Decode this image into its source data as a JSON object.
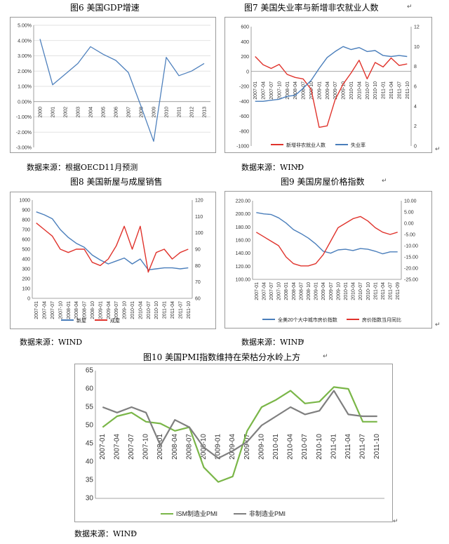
{
  "charts": [
    {
      "title": "图6  美国GDP增速",
      "source": "数据来源：根据OECD11月预测",
      "chart_data": {
        "type": "line",
        "categories": [
          "2000",
          "2001",
          "2002",
          "2003",
          "2004",
          "2005",
          "2006",
          "2007",
          "2008",
          "2009",
          "2010",
          "2011",
          "2012",
          "2013"
        ],
        "series": [
          {
            "name": "",
            "color": "#4F81BD",
            "values": [
              4.1,
              1.1,
              1.8,
              2.5,
              3.6,
              3.1,
              2.7,
              1.9,
              -0.3,
              -2.6,
              2.9,
              1.7,
              2.0,
              2.5
            ]
          }
        ],
        "yticks": [
          "5.00%",
          "4.00%",
          "3.00%",
          "2.00%",
          "1.00%",
          "0.00%",
          "-1.00%",
          "-2.00%",
          "-3.00%"
        ],
        "ylim": [
          -3,
          5
        ],
        "grid": true,
        "legend": "none"
      }
    },
    {
      "title": "图7   美国失业率与新增非农就业人数",
      "source": "数据来源：WIND",
      "chart_data": {
        "type": "line",
        "categories": [
          "2007-01",
          "2007-04",
          "2007-07",
          "2007-10",
          "2008-01",
          "2008-04",
          "2008-07",
          "2008-10",
          "2009-01",
          "2009-04",
          "2009-07",
          "2009-10",
          "2010-01",
          "2010-04",
          "2010-07",
          "2010-10",
          "2011-01",
          "2011-04",
          "2011-07",
          "2011-10"
        ],
        "series": [
          {
            "name": "新增非农就业人数",
            "color": "#E0332C",
            "axis": "left",
            "values": [
              200,
              90,
              40,
              95,
              -40,
              -80,
              -100,
              -240,
              -750,
              -730,
              -380,
              -170,
              -20,
              150,
              -100,
              120,
              60,
              180,
              80,
              100
            ]
          },
          {
            "name": "失业率",
            "color": "#4A7EBB",
            "axis": "right",
            "values": [
              4.5,
              4.5,
              4.6,
              4.7,
              5.0,
              5.1,
              5.8,
              6.6,
              7.8,
              8.9,
              9.5,
              10.0,
              9.7,
              9.9,
              9.5,
              9.6,
              9.1,
              9.0,
              9.1,
              9.0
            ]
          }
        ],
        "yticks_left": [
          "600",
          "400",
          "200",
          "0",
          "-200",
          "-400",
          "-600",
          "-800",
          "-1000"
        ],
        "yticks_right": [
          "12",
          "10",
          "8",
          "6",
          "4",
          "2",
          "0"
        ],
        "ylim_left": [
          -1000,
          600
        ],
        "ylim_right": [
          0,
          12
        ],
        "legend": "bottom"
      }
    },
    {
      "title": "图8  美国新屋与成屋销售",
      "source": "数据来源：WIND",
      "chart_data": {
        "type": "line",
        "categories": [
          "2007-01",
          "2007-04",
          "2007-07",
          "2007-10",
          "2008-01",
          "2008-04",
          "2008-07",
          "2008-10",
          "2009-01",
          "2009-04",
          "2009-07",
          "2009-10",
          "2010-01",
          "2010-04",
          "2010-07",
          "2010-10",
          "2011-01",
          "2011-04",
          "2011-07",
          "2011-10"
        ],
        "series": [
          {
            "name": "新屋",
            "color": "#4A7EBB",
            "axis": "left",
            "values": [
              880,
              850,
              810,
              700,
              620,
              560,
              520,
              440,
              390,
              350,
              380,
              410,
              350,
              400,
              290,
              300,
              310,
              310,
              300,
              310
            ]
          },
          {
            "name": "成屋",
            "color": "#E0332C",
            "axis": "right",
            "values": [
              106,
              102,
              98,
              90,
              88,
              90,
              90,
              82,
              80,
              84,
              92,
              104,
              90,
              104,
              76,
              88,
              90,
              84,
              88,
              90
            ]
          }
        ],
        "yticks_left": [
          "1000",
          "900",
          "800",
          "700",
          "600",
          "500",
          "400",
          "300",
          "200",
          "100",
          "0"
        ],
        "yticks_right": [
          "120",
          "110",
          "100",
          "90",
          "80",
          "70",
          "60"
        ],
        "ylim_left": [
          0,
          1000
        ],
        "ylim_right": [
          60,
          120
        ],
        "legend": "bottom"
      }
    },
    {
      "title": "图9  美国房屋价格指数",
      "source": "数据来源：WIND",
      "chart_data": {
        "type": "line",
        "categories": [
          "2007-01",
          "2007-04",
          "2007-07",
          "2007-10",
          "2008-01",
          "2008-04",
          "2008-07",
          "2008-10",
          "2009-01",
          "2009-04",
          "2009-07",
          "2009-10",
          "2010-01",
          "2010-04",
          "2010-07",
          "2010-10",
          "2011-01",
          "2011-04",
          "2011-07",
          "2011-09"
        ],
        "series": [
          {
            "name": "全美20个大中城市房价指数",
            "color": "#4A7EBB",
            "axis": "left",
            "values": [
              202,
              200,
              199,
              194,
              186,
              176,
              170,
              163,
              154,
              143,
              140,
              145,
              146,
              144,
              147,
              146,
              143,
              139,
              142,
              142
            ]
          },
          {
            "name": "房价指数当月同比",
            "color": "#E0332C",
            "axis": "right",
            "values": [
              -4,
              -6,
              -8,
              -10,
              -15,
              -18,
              -19,
              -19,
              -18,
              -14,
              -8,
              -2,
              0,
              2,
              3,
              1,
              -2,
              -4,
              -5,
              -4
            ]
          }
        ],
        "yticks_left": [
          "220.00",
          "200.00",
          "180.00",
          "160.00",
          "140.00",
          "120.00",
          "100.00"
        ],
        "yticks_right": [
          "10.00",
          "5.00",
          "0.00",
          "-5.00",
          "-10.00",
          "-15.00",
          "-20.00",
          "-25.00"
        ],
        "ylim_left": [
          100,
          220
        ],
        "ylim_right": [
          -25,
          10
        ],
        "legend": "bottom"
      }
    },
    {
      "title": "图10  美国PMI指数维持在荣枯分水岭上方",
      "source": "数据来源：WIND",
      "chart_data": {
        "type": "line",
        "categories": [
          "2007-01",
          "2007-04",
          "2007-07",
          "2007-10",
          "2008-01",
          "2008-04",
          "2008-07",
          "2008-10",
          "2009-01",
          "2009-04",
          "2009-07",
          "2009-10",
          "2010-01",
          "2010-04",
          "2010-07",
          "2010-10",
          "2011-01",
          "2011-04",
          "2011-07",
          "2011-10"
        ],
        "series": [
          {
            "name": "ISM制造业PMI",
            "color": "#7AB648",
            "values": [
              49.5,
              52.5,
              53.5,
              51,
              50.5,
              48.5,
              49.5,
              38.5,
              34.5,
              36,
              48.5,
              55,
              57,
              59.5,
              56,
              56.5,
              60.5,
              60,
              51,
              51
            ]
          },
          {
            "name": "非制造业PMI",
            "color": "#7F7F7F",
            "values": [
              55,
              53.5,
              55,
              53.5,
              44.5,
              51.5,
              49.5,
              44,
              41,
              43,
              45.5,
              50,
              52.5,
              55,
              53,
              54,
              59.5,
              53,
              52.5,
              52.5
            ]
          }
        ],
        "yticks": [
          "65",
          "60",
          "55",
          "50",
          "45",
          "40",
          "35",
          "30"
        ],
        "ylim": [
          30,
          65
        ],
        "legend": "bottom"
      }
    }
  ]
}
